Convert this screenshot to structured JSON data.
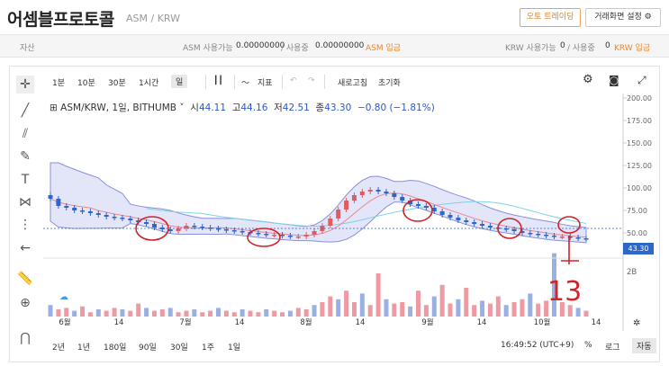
{
  "header": {
    "title": "어셈블프로토콜",
    "pair": "ASM / KRW",
    "auto_trading": "오토 트레이딩",
    "screen_settings": "거래화면 설정"
  },
  "assets": {
    "label": "자산",
    "asm_avail_label": "ASM 사용가능",
    "asm_avail": "0.00000000",
    "asm_used_label": "/ 사용중",
    "asm_used": "0.00000000",
    "asm_deposit": "ASM 입금",
    "krw_avail_label": "KRW 사용가능",
    "krw_avail": "0",
    "krw_used_label": "/ 사용중",
    "krw_used": "0",
    "krw_deposit": "KRW 입금"
  },
  "toolbar": {
    "intervals": [
      "1분",
      "10분",
      "30분",
      "1시간",
      "일"
    ],
    "indicator": "지표",
    "refresh": "새로고침",
    "reset": "초기화"
  },
  "legend": {
    "symbol": "ASM/KRW, 1일, BITHUMB",
    "open_label": "시",
    "open": "44.11",
    "high_label": "고",
    "high": "44.16",
    "low_label": "저",
    "low": "42.51",
    "close_label": "종",
    "close": "43.30",
    "change": "−0.80 (−1.81%)"
  },
  "bottom": {
    "ranges": [
      "2년",
      "1년",
      "180일",
      "90일",
      "30일",
      "1주",
      "1일"
    ],
    "time": "16:49:52 (UTC+9)",
    "percent": "%",
    "log": "로그",
    "auto": "자동"
  },
  "colors": {
    "up": "#e15b64",
    "down": "#2f66c9",
    "band": "#c9cdf2",
    "accent": "#e8862a"
  },
  "chart_data": {
    "type": "line",
    "title": "",
    "y_ticks": [
      "200.00",
      "175.00",
      "150.00",
      "125.00",
      "100.00",
      "75.00",
      "50.00"
    ],
    "x_ticks": [
      "6월",
      "14",
      "7월",
      "14",
      "8월",
      "14",
      "9월",
      "14",
      "10월",
      "14"
    ],
    "volume_tick": "2B",
    "last_price": "43.30",
    "ylim": [
      25,
      205
    ],
    "close": [
      88,
      80,
      78,
      75,
      74,
      72,
      70,
      68,
      67,
      66,
      64,
      62,
      60,
      56,
      54,
      52,
      55,
      58,
      57,
      56,
      55,
      54,
      53,
      52,
      51,
      50,
      49,
      48,
      48,
      47,
      46,
      46,
      48,
      52,
      58,
      66,
      76,
      86,
      92,
      96,
      98,
      96,
      94,
      90,
      86,
      82,
      80,
      78,
      74,
      70,
      67,
      64,
      62,
      60,
      58,
      56,
      55,
      54,
      52,
      50,
      49,
      48,
      47,
      46,
      46,
      45,
      44,
      43.3
    ]
  },
  "annotations": {
    "handwritten": "13"
  }
}
